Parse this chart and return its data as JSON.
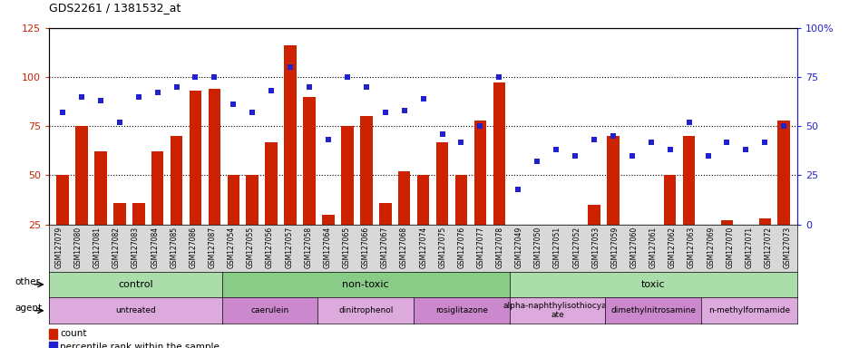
{
  "title": "GDS2261 / 1381532_at",
  "samples": [
    "GSM127079",
    "GSM127080",
    "GSM127081",
    "GSM127082",
    "GSM127083",
    "GSM127084",
    "GSM127085",
    "GSM127086",
    "GSM127087",
    "GSM127054",
    "GSM127055",
    "GSM127056",
    "GSM127057",
    "GSM127058",
    "GSM127064",
    "GSM127065",
    "GSM127066",
    "GSM127067",
    "GSM127068",
    "GSM127074",
    "GSM127075",
    "GSM127076",
    "GSM127077",
    "GSM127078",
    "GSM127049",
    "GSM127050",
    "GSM127051",
    "GSM127052",
    "GSM127053",
    "GSM127059",
    "GSM127060",
    "GSM127061",
    "GSM127062",
    "GSM127063",
    "GSM127069",
    "GSM127070",
    "GSM127071",
    "GSM127072",
    "GSM127073"
  ],
  "counts": [
    50,
    75,
    62,
    36,
    36,
    62,
    70,
    93,
    94,
    50,
    50,
    67,
    116,
    90,
    30,
    75,
    80,
    36,
    52,
    50,
    67,
    50,
    78,
    97,
    15,
    25,
    25,
    25,
    35,
    70,
    25,
    25,
    50,
    70,
    25,
    27,
    25,
    28,
    78
  ],
  "percentiles": [
    57,
    65,
    63,
    52,
    65,
    67,
    70,
    75,
    75,
    61,
    57,
    68,
    80,
    70,
    43,
    75,
    70,
    57,
    58,
    64,
    46,
    42,
    50,
    75,
    18,
    32,
    38,
    35,
    43,
    45,
    35,
    42,
    38,
    52,
    35,
    42,
    38,
    42,
    50
  ],
  "groups_other": [
    {
      "label": "control",
      "start": 0,
      "end": 9,
      "color": "#aaddaa"
    },
    {
      "label": "non-toxic",
      "start": 9,
      "end": 24,
      "color": "#88cc88"
    },
    {
      "label": "toxic",
      "start": 24,
      "end": 39,
      "color": "#aaddaa"
    }
  ],
  "groups_agent": [
    {
      "label": "untreated",
      "start": 0,
      "end": 9,
      "color": "#ddaadd"
    },
    {
      "label": "caerulein",
      "start": 9,
      "end": 14,
      "color": "#cc88cc"
    },
    {
      "label": "dinitrophenol",
      "start": 14,
      "end": 19,
      "color": "#ddaadd"
    },
    {
      "label": "rosiglitazone",
      "start": 19,
      "end": 24,
      "color": "#cc88cc"
    },
    {
      "label": "alpha-naphthylisothiocyan\nate",
      "start": 24,
      "end": 29,
      "color": "#ddaadd"
    },
    {
      "label": "dimethylnitrosamine",
      "start": 29,
      "end": 34,
      "color": "#cc88cc"
    },
    {
      "label": "n-methylformamide",
      "start": 34,
      "end": 39,
      "color": "#ddaadd"
    }
  ],
  "bar_color": "#cc2200",
  "dot_color": "#2222cc",
  "ylim_left": [
    25,
    125
  ],
  "ylim_right": [
    0,
    100
  ],
  "yticks_left": [
    25,
    50,
    75,
    100,
    125
  ],
  "yticks_right": [
    0,
    25,
    50,
    75,
    100
  ],
  "ytick_labels_right": [
    "0",
    "25",
    "50",
    "75",
    "100%"
  ],
  "dotted_lines": [
    50,
    75,
    100
  ],
  "bg_color": "#ffffff",
  "tick_area_color": "#d8d8d8"
}
